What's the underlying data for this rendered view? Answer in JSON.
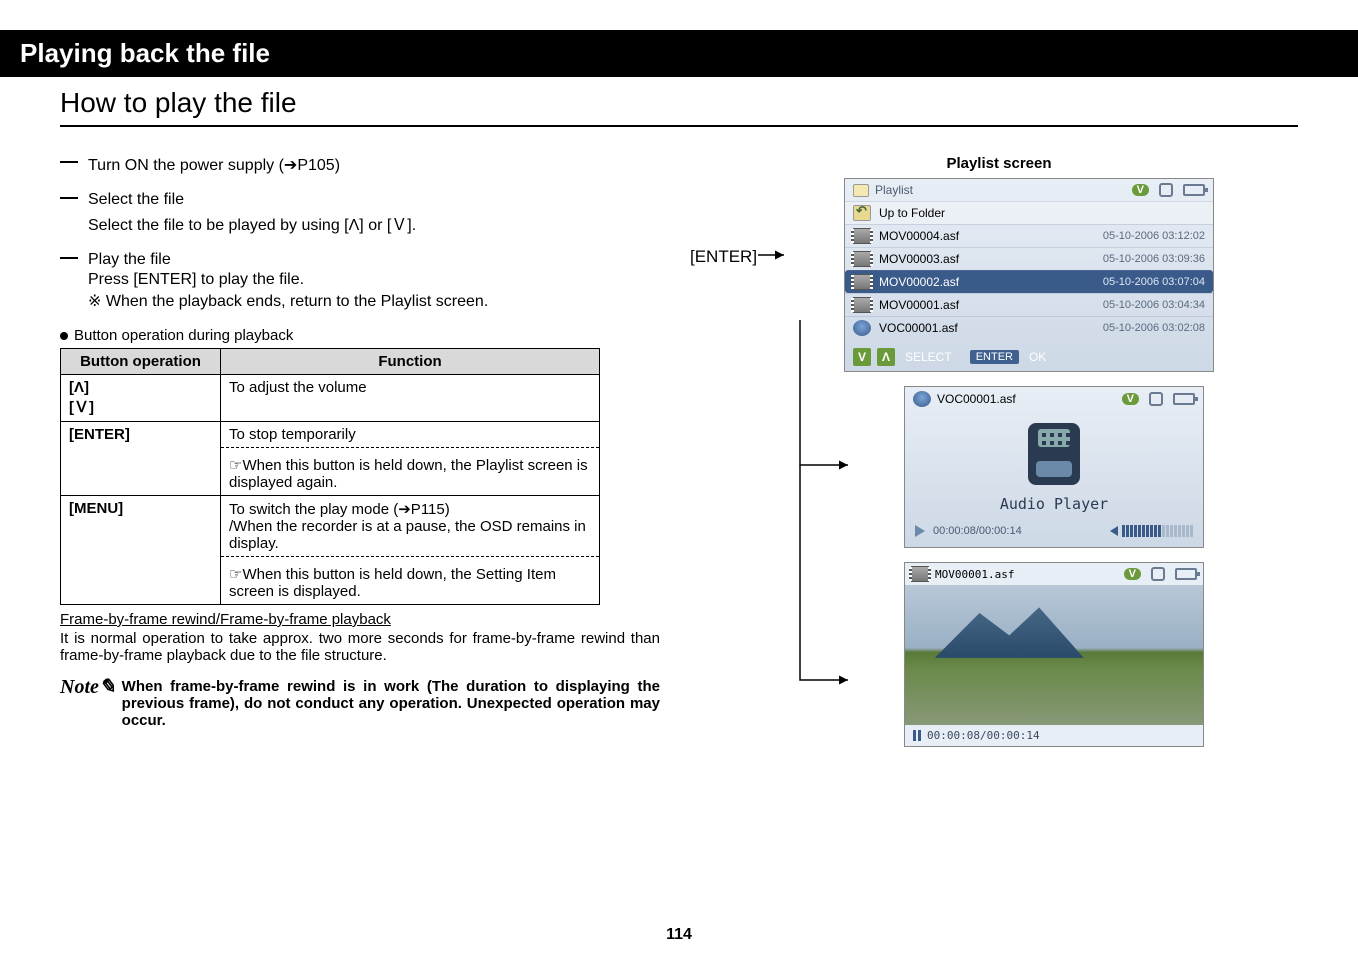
{
  "title_bar": "Playing back the file",
  "subtitle": "How to play the file",
  "steps": [
    {
      "title": "Turn ON the power supply (➔P105)"
    },
    {
      "title": "Select the file",
      "body": "Select the file to be played by using [Λ] or [Ｖ]."
    },
    {
      "title": "Play the file",
      "body": "Press [ENTER] to play the file.",
      "note": "※ When the playback ends, return to the Playlist screen."
    }
  ],
  "button_ops_label": "Button operation during playback",
  "table": {
    "headers": [
      "Button operation",
      "Function"
    ],
    "rows": [
      {
        "btn": "[Λ]\n[Ｖ]",
        "func_main": "To adjust the volume"
      },
      {
        "btn": "[ENTER]",
        "func_main": "To stop temporarily",
        "func_sub": "☞When this button is held down, the Playlist screen is displayed again."
      },
      {
        "btn": "[MENU]",
        "func_main": "To switch the play mode (➔P115)\n/When the recorder is at a pause, the OSD remains in display.",
        "func_sub": "☞When this button is held down, the Setting Item screen is displayed."
      }
    ]
  },
  "frame_title": "Frame-by-frame rewind/Frame-by-frame playback",
  "frame_body": "It is normal operation to take approx. two more seconds for frame-by-frame rewind than frame-by-frame playback due to the file structure.",
  "note_label": "Note",
  "note_text": "When frame-by-frame rewind is in work (The duration to displaying the previous frame), do not conduct any operation. Unexpected operation may occur.",
  "page_num": "114",
  "right": {
    "screens_label": "Playlist screen",
    "enter_label": "[ENTER]",
    "playlist": {
      "title": "Playlist",
      "up": "Up to Folder",
      "rows": [
        {
          "name": "MOV00004.asf",
          "date": "05-10-2006 03:12:02",
          "icon": "film"
        },
        {
          "name": "MOV00003.asf",
          "date": "05-10-2006 03:09:36",
          "icon": "film"
        },
        {
          "name": "MOV00002.asf",
          "date": "05-10-2006 03:07:04",
          "icon": "film",
          "sel": true
        },
        {
          "name": "MOV00001.asf",
          "date": "05-10-2006 03:04:34",
          "icon": "film"
        },
        {
          "name": "VOC00001.asf",
          "date": "05-10-2006 03:02:08",
          "icon": "mic"
        }
      ],
      "footer_select": "SELECT",
      "footer_enter": "ENTER",
      "footer_ok": "OK"
    },
    "audio": {
      "title": "VOC00001.asf",
      "label": "Audio Player",
      "time": "00:00:08/00:00:14"
    },
    "video": {
      "title": "MOV00001.asf",
      "time": "00:00:08/00:00:14"
    }
  }
}
